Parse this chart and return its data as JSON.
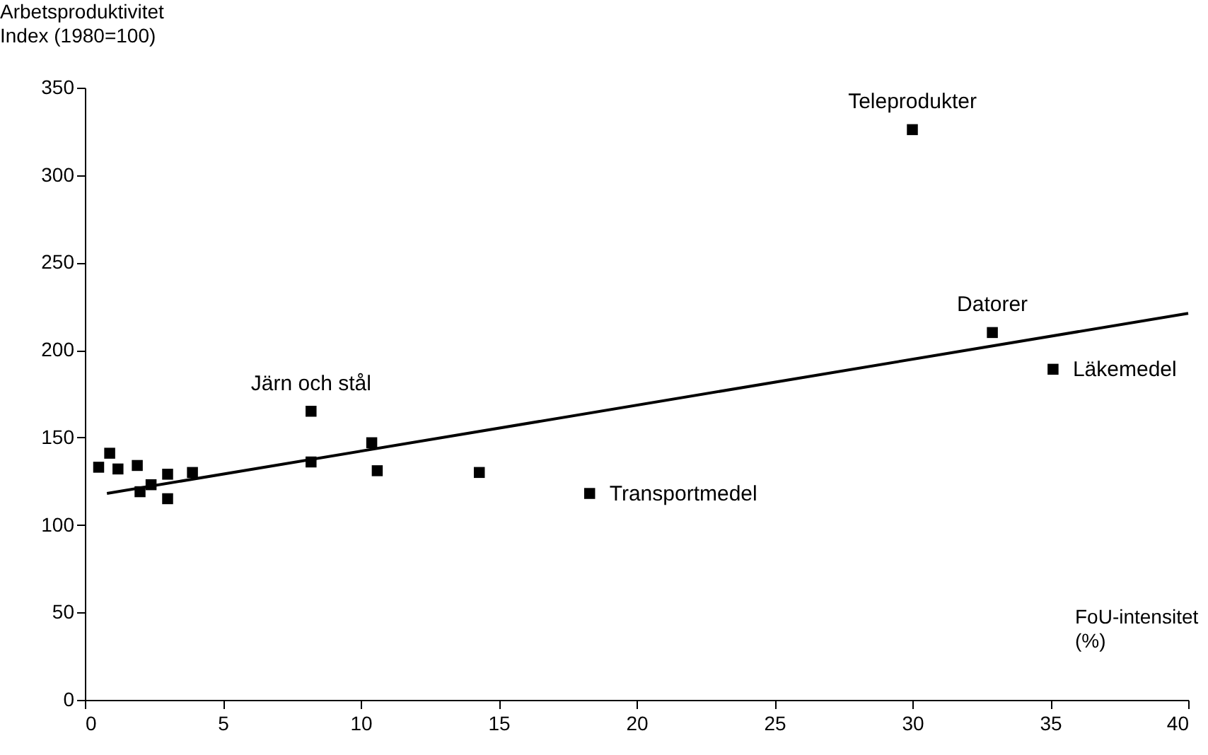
{
  "chart_data": {
    "type": "scatter",
    "xlabel": "FoU-intensitet\n(%)",
    "ylabel": "Arbetsproduktivitet\nIndex (1980=100)",
    "xlim": [
      0,
      40
    ],
    "xticks": [
      0,
      5,
      10,
      15,
      20,
      25,
      30,
      35,
      40
    ],
    "ylim": [
      0,
      350
    ],
    "yticks": [
      0,
      50,
      100,
      150,
      200,
      250,
      300,
      350
    ],
    "grid": false,
    "series": [
      {
        "color": "#000000",
        "marker": "square",
        "x": [
          0.5,
          0.9,
          1.2,
          1.9,
          2.0,
          2.4,
          3.0,
          3.0,
          3.9,
          8.2,
          8.2,
          10.4,
          10.6,
          14.3,
          18.3,
          30.0,
          32.9,
          35.1
        ],
        "values": [
          133,
          141,
          132,
          134,
          119,
          123,
          129,
          115,
          130,
          136,
          165,
          147,
          131,
          130,
          118,
          326,
          210,
          189
        ]
      },
      {
        "type": "line",
        "color": "#000000",
        "line_style": "solid",
        "x": [
          0.8,
          40
        ],
        "values": [
          118,
          221
        ]
      }
    ],
    "annotations": [
      {
        "text": "Järn och stål",
        "x": 8.2,
        "y": 165
      },
      {
        "text": "Teleprodukter",
        "x": 30.0,
        "y": 326
      },
      {
        "text": "Datorer",
        "x": 32.9,
        "y": 210
      },
      {
        "text": "Läkemedel",
        "x": 35.1,
        "y": 189
      },
      {
        "text": "Transportmedel",
        "x": 18.3,
        "y": 118
      }
    ]
  }
}
